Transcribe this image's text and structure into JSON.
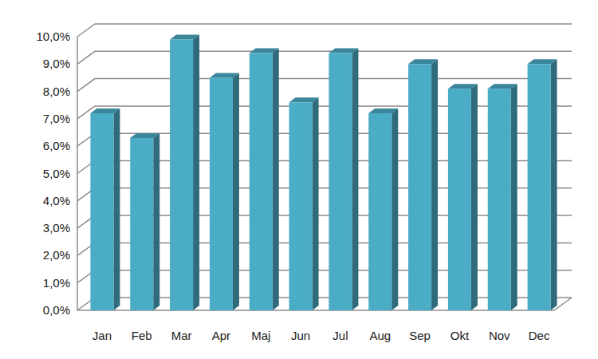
{
  "chart_data": {
    "type": "bar",
    "categories": [
      "Jan",
      "Feb",
      "Mar",
      "Apr",
      "Maj",
      "Jun",
      "Jul",
      "Aug",
      "Sep",
      "Okt",
      "Nov",
      "Dec"
    ],
    "values": [
      7.2,
      6.3,
      9.9,
      8.5,
      9.4,
      7.6,
      9.4,
      7.2,
      9.0,
      8.1,
      8.1,
      9.0
    ],
    "color": "#4bacc6",
    "ylim": [
      0,
      10
    ],
    "yticks": [
      {
        "value": 0,
        "label": "0,0%"
      },
      {
        "value": 1,
        "label": "1,0%"
      },
      {
        "value": 2,
        "label": "2,0%"
      },
      {
        "value": 3,
        "label": "3,0%"
      },
      {
        "value": 4,
        "label": "4,0%"
      },
      {
        "value": 5,
        "label": "5,0%"
      },
      {
        "value": 6,
        "label": "6,0%"
      },
      {
        "value": 7,
        "label": "7,0%"
      },
      {
        "value": 8,
        "label": "8,0%"
      },
      {
        "value": 9,
        "label": "9,0%"
      },
      {
        "value": 10,
        "label": "10,0%"
      }
    ],
    "grid": true
  }
}
